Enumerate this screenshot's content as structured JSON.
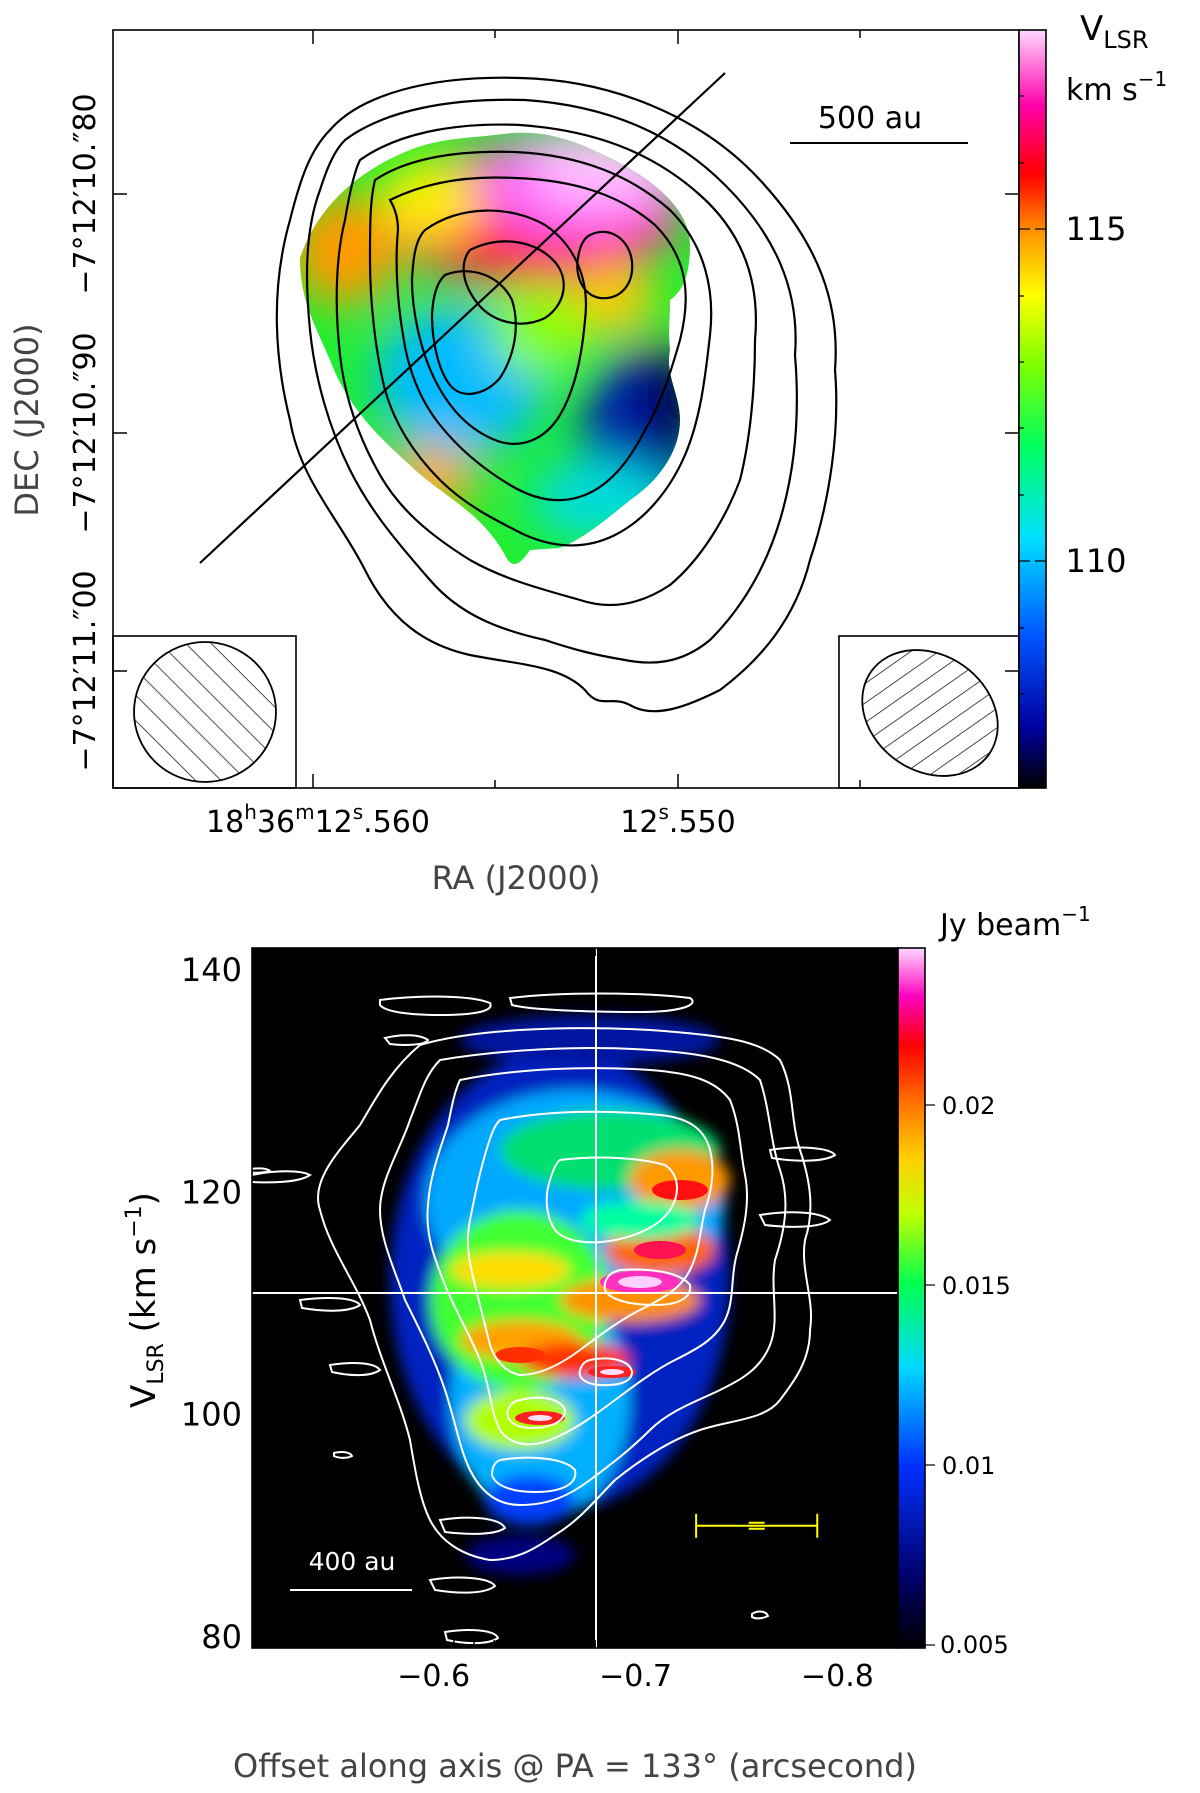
{
  "chart_data": [
    {
      "type": "heatmap",
      "panel": "top",
      "xlabel": "RA (J2000)",
      "ylabel": "DEC (J2000)",
      "x_ticks": [
        {
          "main": "18",
          "sup1": "h",
          "mid": "36",
          "sup2": "m",
          "sec": "12",
          "sup3": "s",
          "frac": ".560"
        },
        {
          "main": "",
          "sup1": "",
          "mid": "",
          "sup2": "",
          "sec": "12",
          "sup3": "s",
          "frac": ".550"
        }
      ],
      "y_ticks": [
        "−7°12′10.″80",
        "−7°12′10.″90",
        "−7°12′11.″00"
      ],
      "colorbar": {
        "title": "V",
        "title_sub": "LSR",
        "unit": "km s",
        "unit_sup": "−1",
        "ticks": [
          115,
          110
        ],
        "range": [
          106.6,
          118.4
        ]
      },
      "scalebar_label": "500   au",
      "cut_line_pa_deg": 133
    },
    {
      "type": "heatmap",
      "panel": "bottom",
      "xlabel": "Offset along axis @ PA = 133° (arcsecond)",
      "ylabel_main": "V",
      "ylabel_sub": "LSR",
      "ylabel_unit": " (km s",
      "ylabel_sup": "−1",
      "ylabel_close": ")",
      "x_ticks": [
        -0.6,
        -0.7,
        -0.8
      ],
      "x_tick_labels": [
        "−0.6",
        "−0.7",
        "−0.8"
      ],
      "xlim": [
        -0.51,
        -0.83
      ],
      "y_ticks": [
        80,
        100,
        120,
        140
      ],
      "ylim": [
        79,
        142
      ],
      "crosshair": {
        "x": -0.68,
        "y": 112
      },
      "colorbar": {
        "title": "Jy beam",
        "title_sup": "−1",
        "ticks": [
          "0.005",
          "0.01",
          "0.015",
          "0.02"
        ],
        "range": [
          0.005,
          0.0245
        ]
      },
      "scalebar_label": "400 au",
      "errorbar": {
        "x": -0.76,
        "y": 90,
        "x_halfwidth": 0.03
      }
    }
  ]
}
